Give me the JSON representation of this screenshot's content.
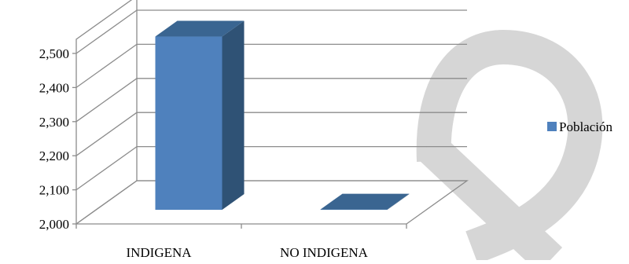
{
  "chart_data": {
    "type": "bar",
    "categories": [
      "INDIGENA",
      "NO INDIGENA"
    ],
    "series": [
      {
        "name": "Población",
        "values": [
          2508,
          2001
        ],
        "color": "#4F81BD"
      }
    ],
    "ylim": [
      2000,
      2500
    ],
    "yticks": [
      "2,000",
      "2,100",
      "2,200",
      "2,300",
      "2,400",
      "2,500"
    ],
    "title": "",
    "xlabel": "",
    "ylabel": "",
    "grid": true,
    "legend_position": "right",
    "style": "3d-column"
  }
}
